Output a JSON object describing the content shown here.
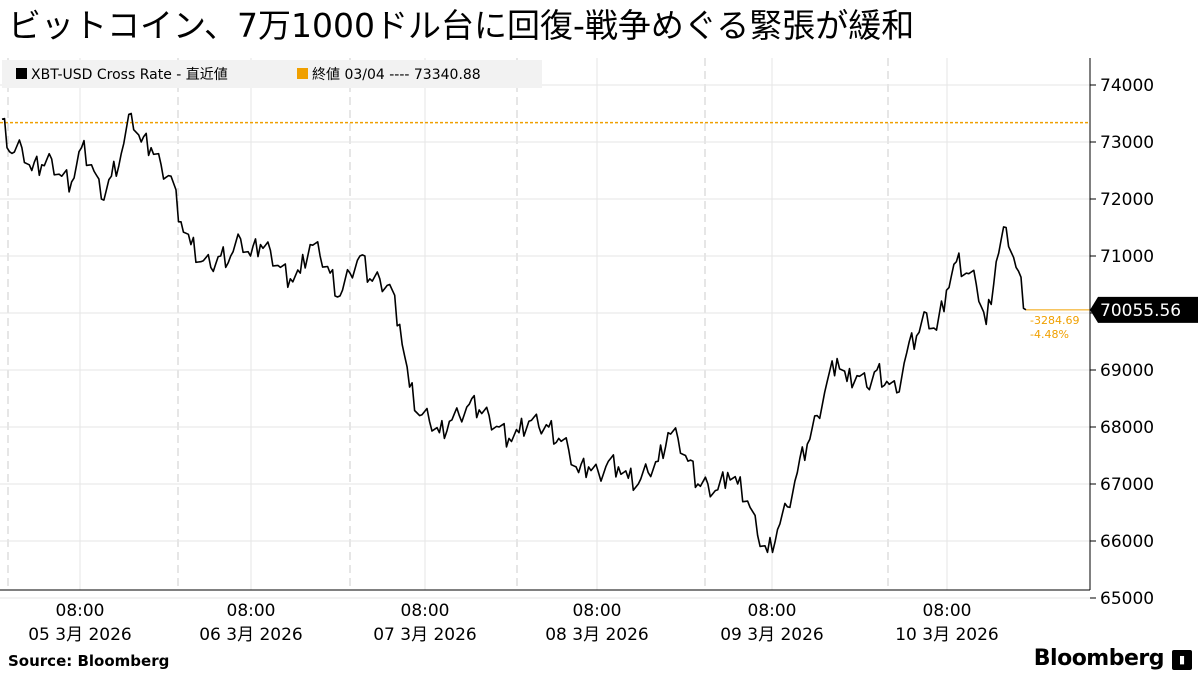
{
  "title": "ビットコイン、7万1000ドル台に回復-戦争めぐる緊張が緩和",
  "legend": {
    "series_label": "XBT-USD Cross Rate - 直近値",
    "close_label": "終値 03/04 ---- 73340.88",
    "series_color": "#000000",
    "close_color": "#f0a000"
  },
  "last_value_label": "70055.56",
  "change_abs": "-3284.69",
  "change_pct": "-4.48%",
  "source": "Source:  Bloomberg",
  "brand": "Bloomberg",
  "chart_data": {
    "type": "line",
    "ylim": [
      64900,
      74300
    ],
    "y_ticks": [
      65000,
      66000,
      67000,
      68000,
      69000,
      70000,
      71000,
      72000,
      73000,
      74000
    ],
    "x_labels": [
      {
        "time": "08:00",
        "date": "05 3月 2026"
      },
      {
        "time": "08:00",
        "date": "06 3月 2026"
      },
      {
        "time": "08:00",
        "date": "07 3月 2026"
      },
      {
        "time": "08:00",
        "date": "08 3月 2026"
      },
      {
        "time": "08:00",
        "date": "09 3月 2026"
      },
      {
        "time": "08:00",
        "date": "10 3月 2026"
      }
    ],
    "reference_line": 73340.88,
    "last_value": 70055.56,
    "series": [
      {
        "values": [
          73400,
          72800,
          72900,
          72500,
          72600,
          72700,
          72400,
          72300,
          72900,
          72600,
          72000,
          72400,
          72800,
          73500,
          73000,
          72900,
          72600,
          72400,
          71600,
          71200,
          70900,
          70800,
          71000,
          71000,
          71300,
          71000,
          71200,
          71100,
          70800,
          70600,
          70700,
          71200,
          71000,
          70700,
          70300,
          70700,
          71000,
          70600,
          70600,
          70500,
          69800,
          68700,
          68200,
          68100,
          67900,
          68100,
          68200,
          68400,
          68300,
          68200,
          68000,
          67800,
          67900,
          68100,
          68000,
          68000,
          67800,
          67600,
          67200,
          67300,
          67200,
          67400,
          67300,
          67100,
          67000,
          67200,
          67400,
          67900,
          67800,
          67400,
          67000,
          67000,
          66900,
          67200,
          67000,
          66700,
          66100,
          65800,
          66200,
          66600,
          67200,
          67700,
          68200,
          68800,
          69200,
          68800,
          68900,
          68700,
          69000,
          68800,
          68600,
          69300,
          69600,
          70000,
          69700,
          70400,
          70900,
          70700,
          70500,
          69800,
          70900,
          71500,
          70800,
          70055.56
        ]
      }
    ]
  }
}
